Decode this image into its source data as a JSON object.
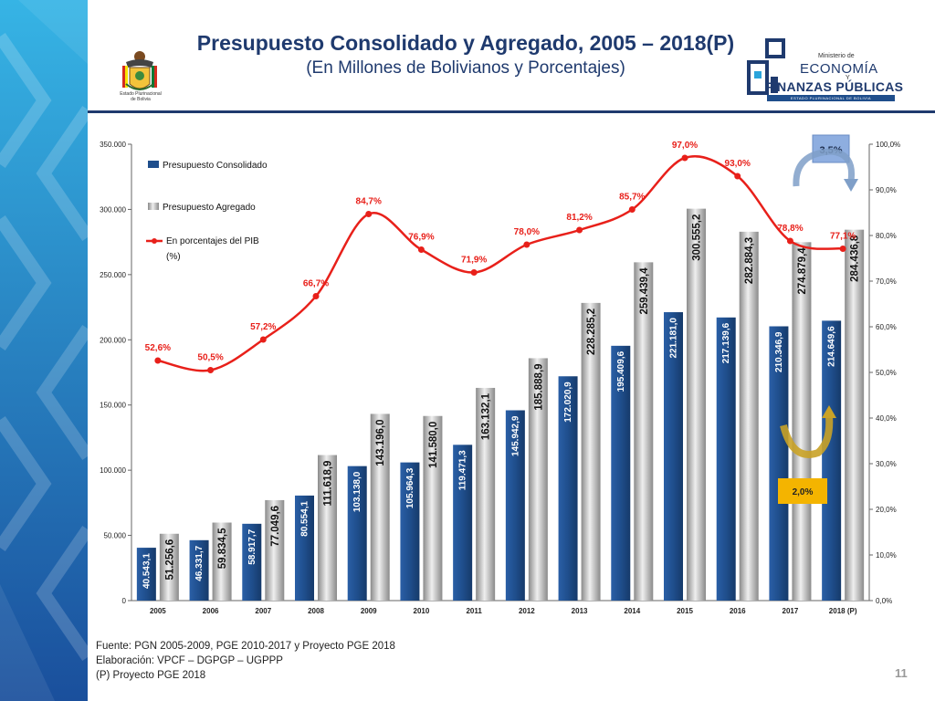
{
  "slide": {
    "title": "Presupuesto Consolidado y Agregado, 2005 – 2018(P)",
    "subtitle": "(En Millones de Bolivianos y Porcentajes)",
    "crest_text_line1": "Estado Plurinacional",
    "crest_text_line2": "de Bolivia",
    "ministry_line1": "Ministerio de",
    "ministry_line2": "ECONOMÍA",
    "ministry_line3": "Y",
    "ministry_line4": "FINANZAS PÚBLICAS",
    "ministry_line5": "ESTADO PLURINACIONAL DE BOLIVIA",
    "footnote1": "Fuente: PGN 2005-2009, PGE 2010-2017 y Proyecto PGE 2018",
    "footnote2": "Elaboración: VPCF – DGPGP – UGPPP",
    "footnote3": "(P) Proyecto PGE 2018",
    "page_number": "11",
    "colors": {
      "title": "#1f3a6e",
      "consolidado": "#1f4e8c",
      "agregado": "#b4b4b4",
      "percent_line": "#e8201a",
      "arrow_up": "#c9a227",
      "arrow_down": "#7f9fc8",
      "badge_orange": "#f4b400",
      "badge_blue": "#8eaee0"
    }
  },
  "chart_data": {
    "type": "bar",
    "categories": [
      "2005",
      "2006",
      "2007",
      "2008",
      "2009",
      "2010",
      "2011",
      "2012",
      "2013",
      "2014",
      "2015",
      "2016",
      "2017",
      "2018 (P)"
    ],
    "series": [
      {
        "name": "Presupuesto Consolidado",
        "values": [
          40543.1,
          46331.7,
          58917.7,
          80554.1,
          103138.0,
          105964.3,
          119471.3,
          145942.9,
          172020.9,
          195409.6,
          221181.0,
          217139.6,
          210346.9,
          214649.6
        ],
        "labels": [
          "40.543,1",
          "46.331,7",
          "58.917,7",
          "80.554,1",
          "103.138,0",
          "105.964,3",
          "119.471,3",
          "145.942,9",
          "172.020,9",
          "195.409,6",
          "221.181,0",
          "217.139,6",
          "210.346,9",
          "214.649,6"
        ]
      },
      {
        "name": "Presupuesto Agregado",
        "values": [
          51256.6,
          59834.5,
          77049.6,
          111618.9,
          143196.0,
          141580.0,
          163132.1,
          185888.9,
          228285.2,
          259439.4,
          300555.2,
          282884.3,
          274879.4,
          284436.8
        ],
        "labels": [
          "51.256,6",
          "59.834,5",
          "77.049,6",
          "111.618,9",
          "143.196,0",
          "141.580,0",
          "163.132,1",
          "185.888,9",
          "228.285,2",
          "259.439,4",
          "300.555,2",
          "282.884,3",
          "274.879,4",
          "284.436,8"
        ]
      },
      {
        "name": "En porcentajes del PIB (%)",
        "axis": "right",
        "values": [
          52.6,
          50.5,
          57.2,
          66.7,
          84.7,
          76.9,
          71.9,
          78.0,
          81.2,
          85.7,
          97.0,
          93.0,
          78.8,
          77.1
        ],
        "labels": [
          "52,6%",
          "50,5%",
          "57,2%",
          "66,7%",
          "84,7%",
          "76,9%",
          "71,9%",
          "78,0%",
          "81,2%",
          "85,7%",
          "97,0%",
          "93,0%",
          "78,8%",
          "77,1%"
        ]
      }
    ],
    "legend": [
      "Presupuesto Consolidado",
      "Presupuesto Agregado",
      "En porcentajes del PIB",
      "(%)"
    ],
    "ylim": [
      0,
      350000
    ],
    "y_ticks": [
      0,
      50000,
      100000,
      150000,
      200000,
      250000,
      300000,
      350000
    ],
    "y_tick_labels": [
      "0",
      "50.000",
      "100.000",
      "150.000",
      "200.000",
      "250.000",
      "300.000",
      "350.000"
    ],
    "y2lim": [
      0,
      100
    ],
    "y2_ticks": [
      0,
      10,
      20,
      30,
      40,
      50,
      60,
      70,
      80,
      90,
      100
    ],
    "y2_tick_labels": [
      "0,0%",
      "10,0%",
      "20,0%",
      "30,0%",
      "40,0%",
      "50,0%",
      "60,0%",
      "70,0%",
      "80,0%",
      "90,0%",
      "100,0%"
    ],
    "legend_position": "top-left",
    "grid": false,
    "annotations": [
      {
        "text": "3,5%",
        "note": "decrease in % of PIB, 2017–2018"
      },
      {
        "text": "2,0%",
        "note": "increase in consolidated budget, 2017–2018"
      }
    ]
  }
}
